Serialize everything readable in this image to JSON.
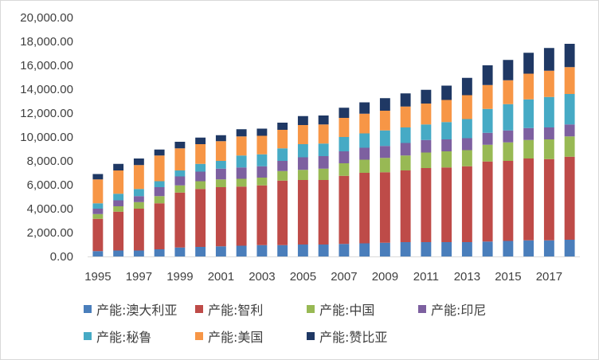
{
  "chart_data": {
    "type": "bar",
    "stacked": true,
    "categories": [
      "1995",
      "1996",
      "1997",
      "1998",
      "1999",
      "2000",
      "2001",
      "2002",
      "2003",
      "2004",
      "2005",
      "2006",
      "2007",
      "2008",
      "2009",
      "2010",
      "2011",
      "2012",
      "2013",
      "2014",
      "2015",
      "2016",
      "2017",
      "2018"
    ],
    "x_tick_labels": [
      "1995",
      "1997",
      "1999",
      "2001",
      "2003",
      "2005",
      "2007",
      "2009",
      "2011",
      "2013",
      "2015",
      "2017"
    ],
    "y_tick_labels": [
      "0.00",
      "2,000.00",
      "4,000.00",
      "6,000.00",
      "8,000.00",
      "10,000.00",
      "12,000.00",
      "14,000.00",
      "16,000.00",
      "18,000.00",
      "20,000.00"
    ],
    "ylim": [
      0,
      20000
    ],
    "grid": false,
    "legend_position": "bottom",
    "title": "",
    "xlabel": "",
    "ylabel": "",
    "series": [
      {
        "name": "产能:澳大利亚",
        "color": "#4a7ebb",
        "values": [
          450,
          500,
          500,
          600,
          750,
          800,
          850,
          900,
          950,
          950,
          1000,
          1000,
          1050,
          1100,
          1150,
          1200,
          1200,
          1200,
          1200,
          1250,
          1300,
          1350,
          1350,
          1400
        ]
      },
      {
        "name": "产能:智利",
        "color": "#be4b48",
        "values": [
          2700,
          3250,
          3500,
          3850,
          4600,
          4850,
          4950,
          4950,
          5000,
          5400,
          5400,
          5400,
          5700,
          5900,
          5900,
          6000,
          6200,
          6250,
          6350,
          6700,
          6700,
          6850,
          6800,
          6950
        ]
      },
      {
        "name": "产能:中国",
        "color": "#98b954",
        "values": [
          400,
          450,
          550,
          600,
          600,
          650,
          650,
          650,
          650,
          800,
          850,
          950,
          1050,
          1100,
          1200,
          1250,
          1300,
          1350,
          1350,
          1400,
          1550,
          1550,
          1650,
          1700
        ]
      },
      {
        "name": "产能:印尼",
        "color": "#7d60a0",
        "values": [
          450,
          500,
          500,
          750,
          750,
          800,
          900,
          950,
          950,
          850,
          1050,
          1050,
          1000,
          1000,
          1000,
          1050,
          1050,
          1000,
          1000,
          1000,
          1000,
          1000,
          1000,
          1000
        ]
      },
      {
        "name": "产能:秘鲁",
        "color": "#46aac5",
        "values": [
          450,
          550,
          600,
          500,
          500,
          650,
          650,
          1000,
          1000,
          1050,
          1100,
          1050,
          1200,
          1200,
          1300,
          1300,
          1300,
          1450,
          1600,
          2000,
          2200,
          2400,
          2550,
          2550
        ]
      },
      {
        "name": "产能:美国",
        "color": "#f79646",
        "values": [
          2000,
          1950,
          2000,
          2150,
          1850,
          1650,
          1650,
          1600,
          1550,
          1550,
          1600,
          1600,
          1600,
          1650,
          1650,
          1750,
          1750,
          1850,
          2000,
          2000,
          2000,
          2150,
          2200,
          2250
        ]
      },
      {
        "name": "产能:赞比亚",
        "color": "#1f3864",
        "values": [
          450,
          550,
          550,
          500,
          550,
          550,
          500,
          600,
          600,
          600,
          750,
          750,
          850,
          950,
          1050,
          1100,
          1150,
          1200,
          1450,
          1650,
          1700,
          1750,
          1900,
          1950
        ]
      }
    ]
  }
}
